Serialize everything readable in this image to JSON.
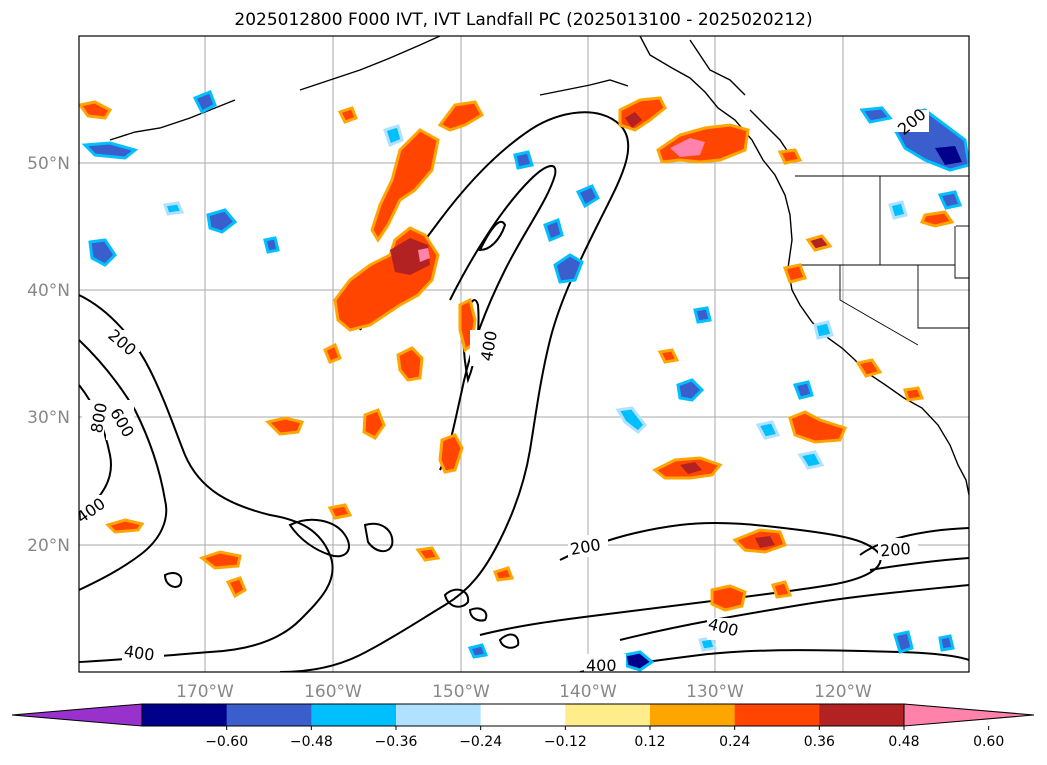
{
  "title": "2025012800 F000 IVT, IVT Landfall PC (2025013100 - 2025020212)",
  "map": {
    "lat_labels": [
      "50°N",
      "40°N",
      "30°N",
      "20°N"
    ],
    "lon_labels": [
      "170°W",
      "160°W",
      "150°W",
      "140°W",
      "130°W",
      "120°W"
    ],
    "contour_labels": [
      "200",
      "200",
      "400",
      "800",
      "600",
      "400",
      "200",
      "200",
      "400",
      "400",
      "400"
    ]
  },
  "colorbar": {
    "tick_labels": [
      "−0.60",
      "−0.48",
      "−0.36",
      "−0.24",
      "−0.12",
      "0.12",
      "0.24",
      "0.36",
      "0.48",
      "0.60"
    ],
    "colors": [
      "#9932cc",
      "#00008b",
      "#3a5fcd",
      "#00bfff",
      "#b0e2ff",
      "#ffffff",
      "#ffec8b",
      "#ffa500",
      "#ff4500",
      "#b22222",
      "#ff82ab"
    ]
  }
}
